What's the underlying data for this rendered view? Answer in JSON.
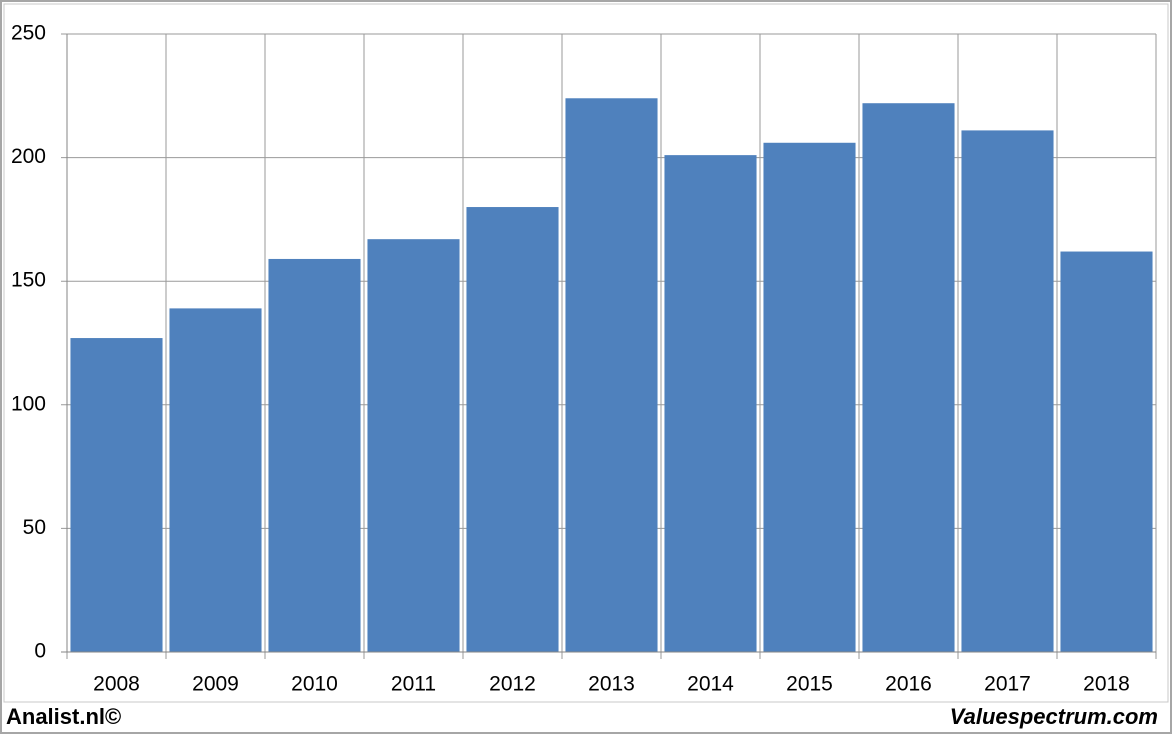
{
  "chart_data": {
    "type": "bar",
    "categories": [
      "2008",
      "2009",
      "2010",
      "2011",
      "2012",
      "2013",
      "2014",
      "2015",
      "2016",
      "2017",
      "2018"
    ],
    "values": [
      127,
      139,
      159,
      167,
      180,
      224,
      201,
      206,
      222,
      211,
      162
    ],
    "color": "#4f81bd",
    "ylim": [
      0,
      250
    ],
    "yticks": [
      0,
      50,
      100,
      150,
      200,
      250
    ],
    "grid": true
  },
  "footer": {
    "left": "Analist.nl©",
    "right": "Valuespectrum.com"
  }
}
